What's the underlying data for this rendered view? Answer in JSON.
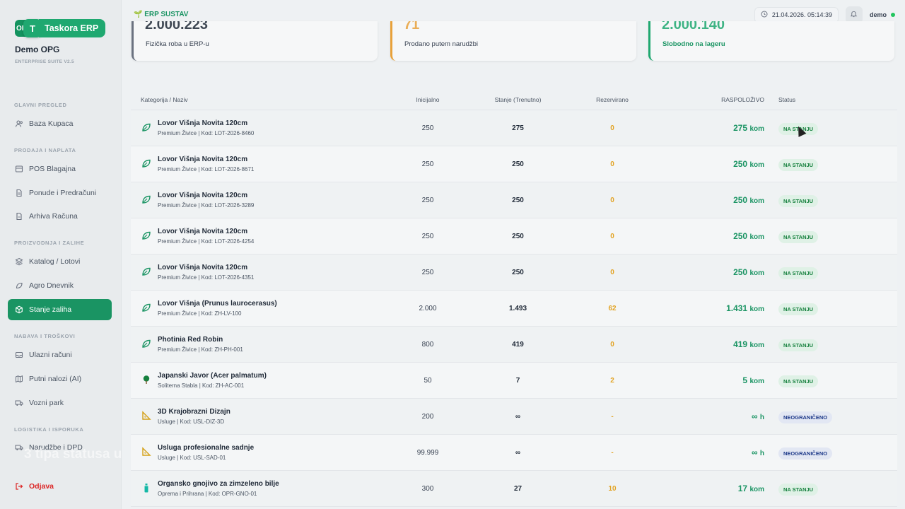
{
  "brand": {
    "logo_letter": "T",
    "logo_back_text": "OP",
    "name": "Taskora ERP"
  },
  "org": {
    "name": "Demo OPG",
    "subtitle": "ENTERPRISE SUITE V2.5"
  },
  "nav": {
    "sections": [
      {
        "label": "GLAVNI PREGLED",
        "items": [
          {
            "label": "Baza Kupaca",
            "icon": "users-icon"
          }
        ]
      },
      {
        "label": "PRODAJA I NAPLATA",
        "items": [
          {
            "label": "POS Blagajna",
            "icon": "pos-icon"
          },
          {
            "label": "Ponude i Predračuni",
            "icon": "document-icon"
          },
          {
            "label": "Arhiva Računa",
            "icon": "archive-icon"
          }
        ]
      },
      {
        "label": "PROIZVODNJA I ZALIHE",
        "items": [
          {
            "label": "Katalog / Lotovi",
            "icon": "layers-icon"
          },
          {
            "label": "Agro Dnevnik",
            "icon": "leaf-icon"
          },
          {
            "label": "Stanje zaliha",
            "icon": "box-icon",
            "active": true
          }
        ]
      },
      {
        "label": "NABAVA I TROŠKOVI",
        "items": [
          {
            "label": "Ulazni računi",
            "icon": "inbox-icon"
          },
          {
            "label": "Putni nalozi (AI)",
            "icon": "map-icon"
          },
          {
            "label": "Vozni park",
            "icon": "truck-icon"
          }
        ]
      },
      {
        "label": "LOGISTIKA I ISPORUKA",
        "items": [
          {
            "label": "Narudžbe i DPD",
            "icon": "delivery-icon"
          }
        ]
      }
    ],
    "logout": "Odjava"
  },
  "overlay_caption": "3 tipa statusa u",
  "topbar": {
    "app_label": "🌱 ERP SUSTAV",
    "datetime": "21.04.2026. 05:14:39",
    "user": "demo"
  },
  "cards": [
    {
      "value": "2.000.223",
      "label": "Fizička roba u ERP-u",
      "accent": "#6b7280"
    },
    {
      "value": "71",
      "label": "Prodano putem narudžbi",
      "accent": "#e8a13a"
    },
    {
      "value": "2.000.140",
      "label": "Slobodno na lageru",
      "accent": "#1fa870"
    }
  ],
  "table": {
    "headers": {
      "name": "Kategorija / Naziv",
      "initial": "Inicijalno",
      "stock": "Stanje (Trenutno)",
      "reserved": "Rezervirano",
      "available": "RASPOLOŽIVO",
      "status": "Status"
    },
    "rows": [
      {
        "icon": "leaf",
        "name": "Lovor Višnja Novita 120cm",
        "sub": "Premium Živice | Kod: LOT-2026-8460",
        "initial": "250",
        "stock": "275",
        "reserved": "0",
        "available": "275",
        "unit": "kom",
        "status": "NA STANJU",
        "status_type": "green"
      },
      {
        "icon": "leaf",
        "name": "Lovor Višnja Novita 120cm",
        "sub": "Premium Živice | Kod: LOT-2026-8671",
        "initial": "250",
        "stock": "250",
        "reserved": "0",
        "available": "250",
        "unit": "kom",
        "status": "NA STANJU",
        "status_type": "green"
      },
      {
        "icon": "leaf",
        "name": "Lovor Višnja Novita 120cm",
        "sub": "Premium Živice | Kod: LOT-2026-3289",
        "initial": "250",
        "stock": "250",
        "reserved": "0",
        "available": "250",
        "unit": "kom",
        "status": "NA STANJU",
        "status_type": "green"
      },
      {
        "icon": "leaf",
        "name": "Lovor Višnja Novita 120cm",
        "sub": "Premium Živice | Kod: LOT-2026-4254",
        "initial": "250",
        "stock": "250",
        "reserved": "0",
        "available": "250",
        "unit": "kom",
        "status": "NA STANJU",
        "status_type": "green"
      },
      {
        "icon": "leaf",
        "name": "Lovor Višnja Novita 120cm",
        "sub": "Premium Živice | Kod: LOT-2026-4351",
        "initial": "250",
        "stock": "250",
        "reserved": "0",
        "available": "250",
        "unit": "kom",
        "status": "NA STANJU",
        "status_type": "green"
      },
      {
        "icon": "leaf",
        "name": "Lovor Višnja (Prunus laurocerasus)",
        "sub": "Premium Živice | Kod: ZH-LV-100",
        "initial": "2.000",
        "stock": "1.493",
        "reserved": "62",
        "available": "1.431",
        "unit": "kom",
        "status": "NA STANJU",
        "status_type": "green"
      },
      {
        "icon": "leaf",
        "name": "Photinia Red Robin",
        "sub": "Premium Živice | Kod: ZH-PH-001",
        "initial": "800",
        "stock": "419",
        "reserved": "0",
        "available": "419",
        "unit": "kom",
        "status": "NA STANJU",
        "status_type": "green"
      },
      {
        "icon": "tree",
        "name": "Japanski Javor (Acer palmatum)",
        "sub": "Soliterna Stabla | Kod: ZH-AC-001",
        "initial": "50",
        "stock": "7",
        "reserved": "2",
        "available": "5",
        "unit": "kom",
        "status": "NA STANJU",
        "status_type": "green"
      },
      {
        "icon": "ruler",
        "name": "3D Krajobrazni Dizajn",
        "sub": "Usluge | Kod: USL-DIZ-3D",
        "initial": "200",
        "stock": "∞",
        "reserved": "-",
        "available": "∞",
        "unit": "h",
        "status": "NEOGRANIČENO",
        "status_type": "blue"
      },
      {
        "icon": "ruler",
        "name": "Usluga profesionalne sadnje",
        "sub": "Usluge | Kod: USL-SAD-01",
        "initial": "99.999",
        "stock": "∞",
        "reserved": "-",
        "available": "∞",
        "unit": "h",
        "status": "NEOGRANIČENO",
        "status_type": "blue"
      },
      {
        "icon": "bottle",
        "name": "Organsko gnojivo za zimzeleno bilje",
        "sub": "Oprema i Prihrana | Kod: OPR-GNO-01",
        "initial": "300",
        "stock": "27",
        "reserved": "10",
        "available": "17",
        "unit": "kom",
        "status": "NA STANJU",
        "status_type": "green"
      }
    ]
  }
}
